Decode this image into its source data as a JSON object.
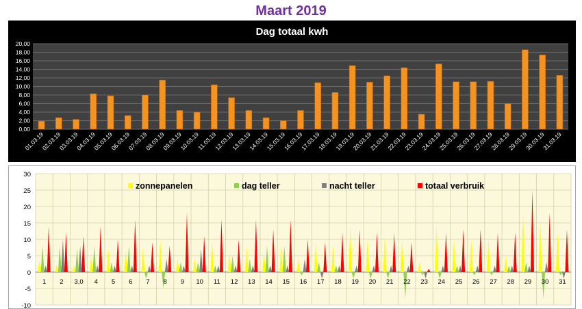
{
  "page": {
    "title": "Maart 2019"
  },
  "colors": {
    "title": "#7030a0",
    "bar_fill": "#f39422",
    "bar_dark": "#c0620a",
    "chart1_bg": "#000000",
    "chart1_plot": "#404040",
    "zonnepanelen": "#ffff00",
    "dag_teller": "#92d050",
    "nacht_teller": "#808080",
    "totaal_verbruik": "#ff0000",
    "chart2_plot": "#fbf8dc"
  },
  "chart_data": [
    {
      "type": "bar",
      "title": "Dag totaal kwh",
      "xlabel": "",
      "ylabel": "",
      "ylim": [
        0,
        20
      ],
      "ytick_step": 2,
      "ytick_labels": [
        "0,00",
        "2,00",
        "4,00",
        "6,00",
        "8,00",
        "10,00",
        "12,00",
        "14,00",
        "16,00",
        "18,00",
        "20,00"
      ],
      "grid": true,
      "categories": [
        "01.03.19",
        "02.03.19",
        "03.03.19",
        "04.03.19",
        "05.03.19",
        "06.03.19",
        "07.03.19",
        "08.03.19",
        "09.03.19",
        "10.03.19",
        "11.03.19",
        "12.03.19",
        "13.03.19",
        "14.03.19",
        "15.03.19",
        "16.03.19",
        "17.03.19",
        "18.03.19",
        "19.03.19",
        "20.03.19",
        "21.03.19",
        "22.03.19",
        "23.03.19",
        "24.03.19",
        "25.03.19",
        "26.03.19",
        "27.03.19",
        "28.03.19",
        "29.03.19",
        "30.03.19",
        "31.03.19"
      ],
      "values": [
        1.9,
        2.7,
        2.3,
        8.3,
        7.8,
        3.2,
        8.0,
        11.5,
        4.4,
        4.0,
        10.4,
        7.4,
        4.4,
        2.7,
        2.0,
        4.4,
        10.9,
        8.6,
        14.9,
        11.0,
        12.5,
        14.4,
        3.5,
        15.3,
        11.1,
        11.1,
        11.2,
        6.0,
        18.6,
        17.4,
        12.6
      ]
    },
    {
      "type": "area",
      "title": "",
      "xlabel": "",
      "ylabel": "",
      "ylim": [
        -10,
        30
      ],
      "ytick_step": 5,
      "ytick_labels": [
        "-10",
        "-5",
        "0",
        "5",
        "10",
        "15",
        "20",
        "25",
        "30"
      ],
      "grid": true,
      "legend_position": "top",
      "categories": [
        "1",
        "2",
        "3,0",
        "4",
        "5",
        "6",
        "7",
        "8",
        "9",
        "10",
        "11",
        "12",
        "13",
        "14",
        "15",
        "16",
        "17",
        "18",
        "19",
        "20",
        "21",
        "22",
        "23",
        "24",
        "25",
        "26",
        "27",
        "28",
        "29",
        "30",
        "31"
      ],
      "series": [
        {
          "name": "zonnepanelen",
          "values": [
            3.5,
            2,
            2,
            5,
            7,
            6.5,
            7.5,
            10,
            4,
            4,
            9,
            5.5,
            8,
            6,
            8,
            4,
            9,
            8,
            14,
            10,
            11,
            10,
            3,
            14,
            10,
            10,
            10,
            5,
            18,
            16,
            12
          ]
        },
        {
          "name": "dag teller",
          "values": [
            8,
            8,
            7,
            8,
            3,
            8,
            -2,
            -5,
            3,
            3,
            2,
            5,
            4,
            8,
            8,
            -1,
            3,
            2,
            -2,
            -2,
            -2,
            -8,
            -1,
            -2,
            2,
            -1,
            -1,
            2,
            3,
            -8,
            -1
          ]
        },
        {
          "name": "nacht teller",
          "values": [
            2,
            10,
            8,
            2,
            2,
            2,
            2,
            4,
            2,
            7,
            2,
            2,
            2,
            2,
            2,
            4,
            -2,
            2,
            2,
            2,
            2,
            2,
            -2,
            2,
            2,
            2,
            2,
            2,
            2,
            3,
            -2
          ]
        },
        {
          "name": "totaal verbruik",
          "values": [
            14,
            12,
            11,
            14,
            10,
            16,
            9,
            8,
            18,
            11,
            16,
            10,
            16,
            13,
            16,
            10,
            9,
            12,
            13,
            12,
            12,
            9,
            1,
            12,
            13,
            13,
            12,
            12,
            25,
            18,
            13
          ]
        }
      ]
    }
  ]
}
